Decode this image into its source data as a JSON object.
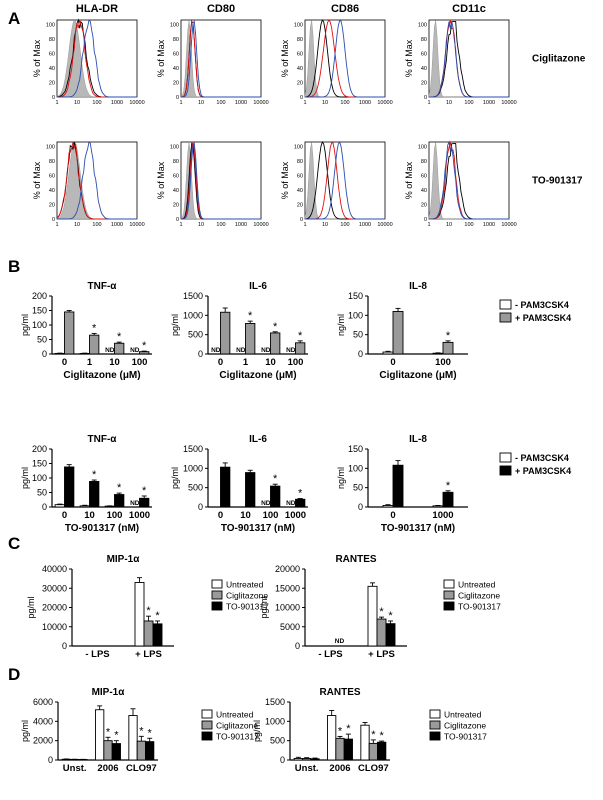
{
  "panel_letters": [
    "A",
    "B",
    "C",
    "D"
  ],
  "panelA": {
    "markers": [
      "HLA-DR",
      "CD80",
      "CD86",
      "CD11c"
    ],
    "row_labels": [
      "Ciglitazone",
      "TO-901317"
    ],
    "ylabel": "% of Max",
    "y_ticks": [
      "0",
      "20",
      "40",
      "60",
      "80",
      "100"
    ],
    "x_ticks": [
      "1",
      "10",
      "100",
      "1000",
      "10000"
    ],
    "colors": {
      "isotype": "#b8b8b8",
      "black": "#000000",
      "red": "#e01010",
      "blue": "#2a4db0"
    }
  },
  "panelB": {
    "legend_rows": [
      [
        {
          "label": "- PAM3CSK4",
          "color": "#ffffff"
        },
        {
          "label": "+ PAM3CSK4",
          "color": "#9a9a9a"
        }
      ],
      [
        {
          "label": "- PAM3CSK4",
          "color": "#ffffff"
        },
        {
          "label": "+ PAM3CSK4",
          "color": "#000000"
        }
      ]
    ]
  },
  "legend_CD": [
    {
      "label": "Untreated",
      "color": "#ffffff"
    },
    {
      "label": "Ciglitazone",
      "color": "#9a9a9a"
    },
    {
      "label": "TO-901317",
      "color": "#000000"
    }
  ],
  "chart_data": [
    {
      "id": "B1",
      "type": "bar",
      "title": "TNF-α",
      "ylabel": "pg/ml",
      "xlabel": "Ciglitazone (μM)",
      "ylim": [
        0,
        200
      ],
      "yticks": [
        "0",
        "50",
        "100",
        "150",
        "200"
      ],
      "categories": [
        "0",
        "1",
        "10",
        "100"
      ],
      "series": [
        {
          "name": "- PAM3CSK4",
          "color": "#ffffff",
          "values": [
            2,
            2,
            0,
            0
          ],
          "err": [
            1,
            1,
            0,
            0
          ]
        },
        {
          "name": "+ PAM3CSK4",
          "color": "#9a9a9a",
          "values": [
            145,
            65,
            37,
            8
          ],
          "err": [
            5,
            6,
            4,
            2
          ]
        }
      ],
      "nd": [
        2,
        3
      ],
      "sig": [
        [
          1,
          1
        ],
        [
          1,
          2
        ],
        [
          1,
          3
        ]
      ]
    },
    {
      "id": "B2",
      "type": "bar",
      "title": "IL-6",
      "ylabel": "pg/ml",
      "xlabel": "Ciglitazone (μM)",
      "ylim": [
        0,
        1500
      ],
      "yticks": [
        "0",
        "500",
        "1000",
        "1500"
      ],
      "categories": [
        "0",
        "1",
        "10",
        "100"
      ],
      "series": [
        {
          "name": "- PAM3CSK4",
          "color": "#ffffff",
          "values": [
            0,
            0,
            0,
            0
          ],
          "err": [
            0,
            0,
            0,
            0
          ]
        },
        {
          "name": "+ PAM3CSK4",
          "color": "#9a9a9a",
          "values": [
            1080,
            790,
            545,
            290
          ],
          "err": [
            110,
            60,
            30,
            50
          ]
        }
      ],
      "nd": [
        0,
        1,
        2,
        3
      ],
      "sig": [
        [
          1,
          1
        ],
        [
          1,
          2
        ],
        [
          1,
          3
        ]
      ]
    },
    {
      "id": "B3",
      "type": "bar",
      "title": "IL-8",
      "ylabel": "ng/ml",
      "xlabel": "Ciglitazone (μM)",
      "ylim": [
        0,
        150
      ],
      "yticks": [
        "0",
        "50",
        "100",
        "150"
      ],
      "categories": [
        "0",
        "100"
      ],
      "series": [
        {
          "name": "- PAM3CSK4",
          "color": "#ffffff",
          "values": [
            5,
            2
          ],
          "err": [
            2,
            1
          ]
        },
        {
          "name": "+ PAM3CSK4",
          "color": "#9a9a9a",
          "values": [
            110,
            30
          ],
          "err": [
            8,
            4
          ]
        }
      ],
      "nd": [],
      "sig": [
        [
          1,
          1
        ]
      ]
    },
    {
      "id": "B4",
      "type": "bar",
      "title": "TNF-α",
      "ylabel": "pg/ml",
      "xlabel": "TO-901317 (nM)",
      "ylim": [
        0,
        200
      ],
      "yticks": [
        "0",
        "50",
        "100",
        "150",
        "200"
      ],
      "categories": [
        "0",
        "10",
        "100",
        "1000"
      ],
      "series": [
        {
          "name": "- PAM3CSK4",
          "color": "#ffffff",
          "values": [
            8,
            4,
            3,
            0
          ],
          "err": [
            2,
            2,
            1,
            0
          ]
        },
        {
          "name": "+ PAM3CSK4",
          "color": "#000000",
          "values": [
            138,
            88,
            43,
            30
          ],
          "err": [
            8,
            5,
            5,
            8
          ]
        }
      ],
      "nd": [
        3
      ],
      "sig": [
        [
          1,
          1
        ],
        [
          1,
          2
        ],
        [
          1,
          3
        ]
      ]
    },
    {
      "id": "B5",
      "type": "bar",
      "title": "IL-6",
      "ylabel": "pg/ml",
      "xlabel": "TO-901317 (nM)",
      "ylim": [
        0,
        1500
      ],
      "yticks": [
        "0",
        "500",
        "1000",
        "1500"
      ],
      "categories": [
        "0",
        "10",
        "100",
        "1000"
      ],
      "series": [
        {
          "name": "- PAM3CSK4",
          "color": "#ffffff",
          "values": [
            0,
            0,
            0,
            0
          ],
          "err": [
            0,
            0,
            0,
            0
          ]
        },
        {
          "name": "+ PAM3CSK4",
          "color": "#000000",
          "values": [
            1030,
            890,
            540,
            200
          ],
          "err": [
            110,
            60,
            50,
            20
          ]
        }
      ],
      "nd": [
        2,
        3
      ],
      "sig": [
        [
          1,
          2
        ],
        [
          1,
          3
        ]
      ]
    },
    {
      "id": "B6",
      "type": "bar",
      "title": "IL-8",
      "ylabel": "ng/ml",
      "xlabel": "TO-901317 (nM)",
      "ylim": [
        0,
        150
      ],
      "yticks": [
        "0",
        "50",
        "100",
        "150"
      ],
      "categories": [
        "0",
        "1000"
      ],
      "series": [
        {
          "name": "- PAM3CSK4",
          "color": "#ffffff",
          "values": [
            4,
            3
          ],
          "err": [
            2,
            1
          ]
        },
        {
          "name": "+ PAM3CSK4",
          "color": "#000000",
          "values": [
            108,
            38
          ],
          "err": [
            12,
            4
          ]
        }
      ],
      "nd": [],
      "sig": [
        [
          1,
          1
        ]
      ]
    },
    {
      "id": "C1",
      "type": "bar",
      "title": "MIP-1α",
      "ylabel": "pg/ml",
      "xlabel": "",
      "ylim": [
        0,
        40000
      ],
      "yticks": [
        "0",
        "10000",
        "20000",
        "30000",
        "40000"
      ],
      "categories": [
        "- LPS",
        "+ LPS"
      ],
      "series": [
        {
          "name": "Untreated",
          "color": "#ffffff",
          "values": [
            0,
            33000
          ],
          "err": [
            0,
            2500
          ]
        },
        {
          "name": "Ciglitazone",
          "color": "#9a9a9a",
          "values": [
            0,
            13000
          ],
          "err": [
            0,
            2500
          ]
        },
        {
          "name": "TO-901317",
          "color": "#000000",
          "values": [
            0,
            11500
          ],
          "err": [
            0,
            1500
          ]
        }
      ],
      "nd": [],
      "sig": [
        [
          1,
          1
        ],
        [
          2,
          1
        ]
      ]
    },
    {
      "id": "C2",
      "type": "bar",
      "title": "RANTES",
      "ylabel": "pg/ml",
      "xlabel": "",
      "ylim": [
        0,
        20000
      ],
      "yticks": [
        "0",
        "5000",
        "10000",
        "15000",
        "20000"
      ],
      "categories": [
        "- LPS",
        "+ LPS"
      ],
      "series": [
        {
          "name": "Untreated",
          "color": "#ffffff",
          "values": [
            0,
            15500
          ],
          "err": [
            0,
            900
          ]
        },
        {
          "name": "Ciglitazone",
          "color": "#9a9a9a",
          "values": [
            0,
            7000
          ],
          "err": [
            0,
            500
          ]
        },
        {
          "name": "TO-901317",
          "color": "#000000",
          "values": [
            0,
            5800
          ],
          "err": [
            0,
            700
          ]
        }
      ],
      "nd_group": [
        0
      ],
      "sig": [
        [
          1,
          1
        ],
        [
          2,
          1
        ]
      ]
    },
    {
      "id": "D1",
      "type": "bar",
      "title": "MIP-1α",
      "ylabel": "pg/ml",
      "xlabel": "",
      "ylim": [
        0,
        6000
      ],
      "yticks": [
        "0",
        "2000",
        "4000",
        "6000"
      ],
      "categories": [
        "Unst.",
        "2006",
        "CLO97"
      ],
      "series": [
        {
          "name": "Untreated",
          "color": "#ffffff",
          "values": [
            80,
            5200,
            4600
          ],
          "err": [
            30,
            400,
            700
          ]
        },
        {
          "name": "Ciglitazone",
          "color": "#9a9a9a",
          "values": [
            60,
            2000,
            1950
          ],
          "err": [
            20,
            350,
            500
          ]
        },
        {
          "name": "TO-901317",
          "color": "#000000",
          "values": [
            50,
            1700,
            1900
          ],
          "err": [
            20,
            300,
            350
          ]
        }
      ],
      "nd": [],
      "sig": [
        [
          1,
          1
        ],
        [
          2,
          1
        ],
        [
          1,
          2
        ],
        [
          2,
          2
        ]
      ]
    },
    {
      "id": "D2",
      "type": "bar",
      "title": "RANTES",
      "ylabel": "pg/ml",
      "xlabel": "",
      "ylim": [
        0,
        1500
      ],
      "yticks": [
        "0",
        "500",
        "1000",
        "1500"
      ],
      "categories": [
        "Unst.",
        "2006",
        "CLO97"
      ],
      "series": [
        {
          "name": "Untreated",
          "color": "#ffffff",
          "values": [
            40,
            1150,
            900
          ],
          "err": [
            30,
            130,
            70
          ]
        },
        {
          "name": "Ciglitazone",
          "color": "#9a9a9a",
          "values": [
            40,
            560,
            430
          ],
          "err": [
            20,
            50,
            90
          ]
        },
        {
          "name": "TO-901317",
          "color": "#000000",
          "values": [
            30,
            540,
            460
          ],
          "err": [
            20,
            130,
            30
          ]
        }
      ],
      "nd": [],
      "sig": [
        [
          1,
          1
        ],
        [
          2,
          1
        ],
        [
          1,
          2
        ],
        [
          2,
          2
        ]
      ]
    }
  ]
}
